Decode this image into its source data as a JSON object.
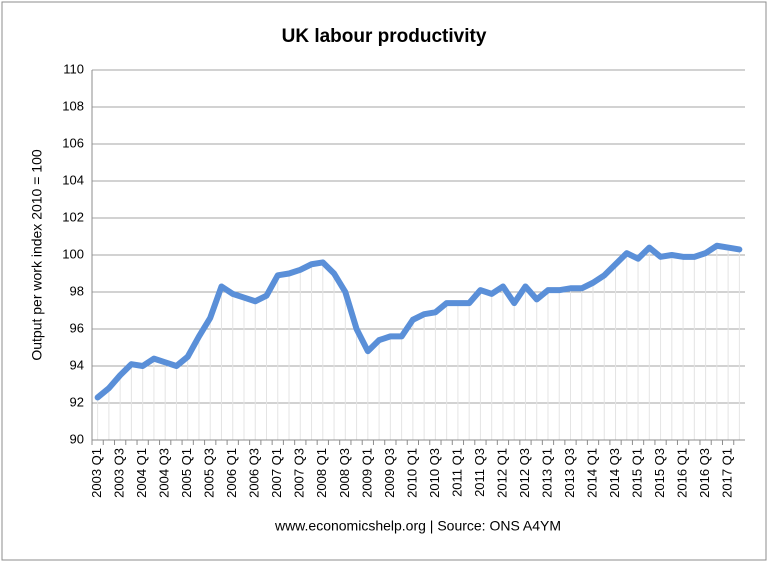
{
  "chart_data": {
    "type": "line",
    "title": "UK labour productivity",
    "y_label": "Output per work index 2010 = 100",
    "source": "www.economicshelp.org | Source: ONS A4YM",
    "categories": [
      "2003 Q1",
      null,
      "2003 Q3",
      null,
      "2004 Q1",
      null,
      "2004 Q3",
      null,
      "2005 Q1",
      null,
      "2005 Q3",
      null,
      "2006 Q1",
      null,
      "2006 Q3",
      null,
      "2007 Q1",
      null,
      "2007 Q3",
      null,
      "2008 Q1",
      null,
      "2008 Q3",
      null,
      "2009 Q1",
      null,
      "2009 Q3",
      null,
      "2010 Q1",
      null,
      "2010 Q3",
      null,
      "2011 Q1",
      null,
      "2011 Q3",
      null,
      "2012 Q1",
      null,
      "2012 Q3",
      null,
      "2013 Q1",
      null,
      "2013 Q3",
      null,
      "2014 Q1",
      null,
      "2014 Q3",
      null,
      "2015 Q1",
      null,
      "2015 Q3",
      null,
      "2016 Q1",
      null,
      "2016 Q3",
      null,
      "2017 Q1",
      null
    ],
    "values": [
      92.3,
      92.8,
      93.5,
      94.1,
      94.0,
      94.4,
      94.2,
      94.0,
      94.5,
      95.6,
      96.6,
      98.3,
      97.9,
      97.7,
      97.5,
      97.8,
      98.9,
      99.0,
      99.2,
      99.5,
      99.6,
      99.0,
      98.0,
      96.0,
      94.8,
      95.4,
      95.6,
      95.6,
      96.5,
      96.8,
      96.9,
      97.4,
      97.4,
      97.4,
      98.1,
      97.9,
      98.3,
      97.4,
      98.3,
      97.6,
      98.1,
      98.1,
      98.2,
      98.2,
      98.5,
      98.9,
      99.5,
      100.1,
      99.8,
      100.4,
      99.9,
      100.0,
      99.9,
      99.9,
      100.1,
      100.5,
      100.4,
      100.3
    ],
    "color": "#5a8fd8",
    "ylim": [
      90,
      110
    ],
    "yticks": [
      90,
      92,
      94,
      96,
      98,
      100,
      102,
      104,
      106,
      108,
      110
    ],
    "grid": true,
    "drop_lines": true
  }
}
